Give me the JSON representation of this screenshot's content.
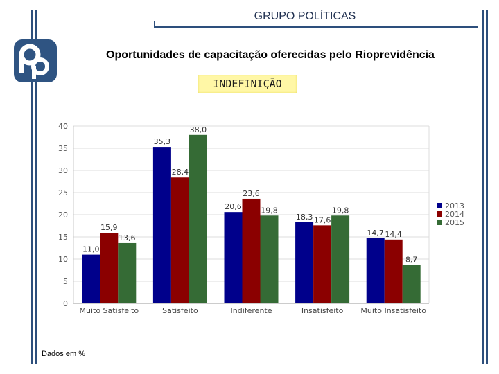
{
  "header": {
    "title": "GRUPO POLÍTICAS"
  },
  "main": {
    "title": "Oportunidades de capacitação oferecidas pelo Rioprevidência"
  },
  "badge": {
    "label": "INDEFINIÇÃO"
  },
  "footnote": "Dados em %",
  "colors": {
    "frame": "#2d4f7c",
    "logo": "#2f5482",
    "badge_bg": "#fff7a6"
  },
  "logo_icon": "logo-pp-icon",
  "chart_data": {
    "type": "bar",
    "title": "",
    "xlabel": "",
    "ylabel": "",
    "ylim": [
      0,
      40
    ],
    "yticks": [
      0,
      5,
      10,
      15,
      20,
      25,
      30,
      35,
      40
    ],
    "categories": [
      "Muito Satisfeito",
      "Satisfeito",
      "Indiferente",
      "Insatisfeito",
      "Muito Insatisfeito"
    ],
    "series": [
      {
        "name": "2013",
        "color": "#00008b",
        "values": [
          11.0,
          35.3,
          20.6,
          18.3,
          14.7
        ],
        "labels": [
          "11,0",
          "35,3",
          "20,6",
          "18,3",
          "14,7"
        ]
      },
      {
        "name": "2014",
        "color": "#8b0000",
        "values": [
          15.9,
          28.4,
          23.6,
          17.6,
          14.4
        ],
        "labels": [
          "15,9",
          "28,4",
          "23,6",
          "17,6",
          "14,4"
        ]
      },
      {
        "name": "2015",
        "color": "#356b35",
        "values": [
          13.6,
          38.0,
          19.8,
          19.8,
          8.7
        ],
        "labels": [
          "13,6",
          "38,0",
          "19,8",
          "19,8",
          "8,7"
        ]
      }
    ],
    "legend": "right",
    "grid": true
  }
}
